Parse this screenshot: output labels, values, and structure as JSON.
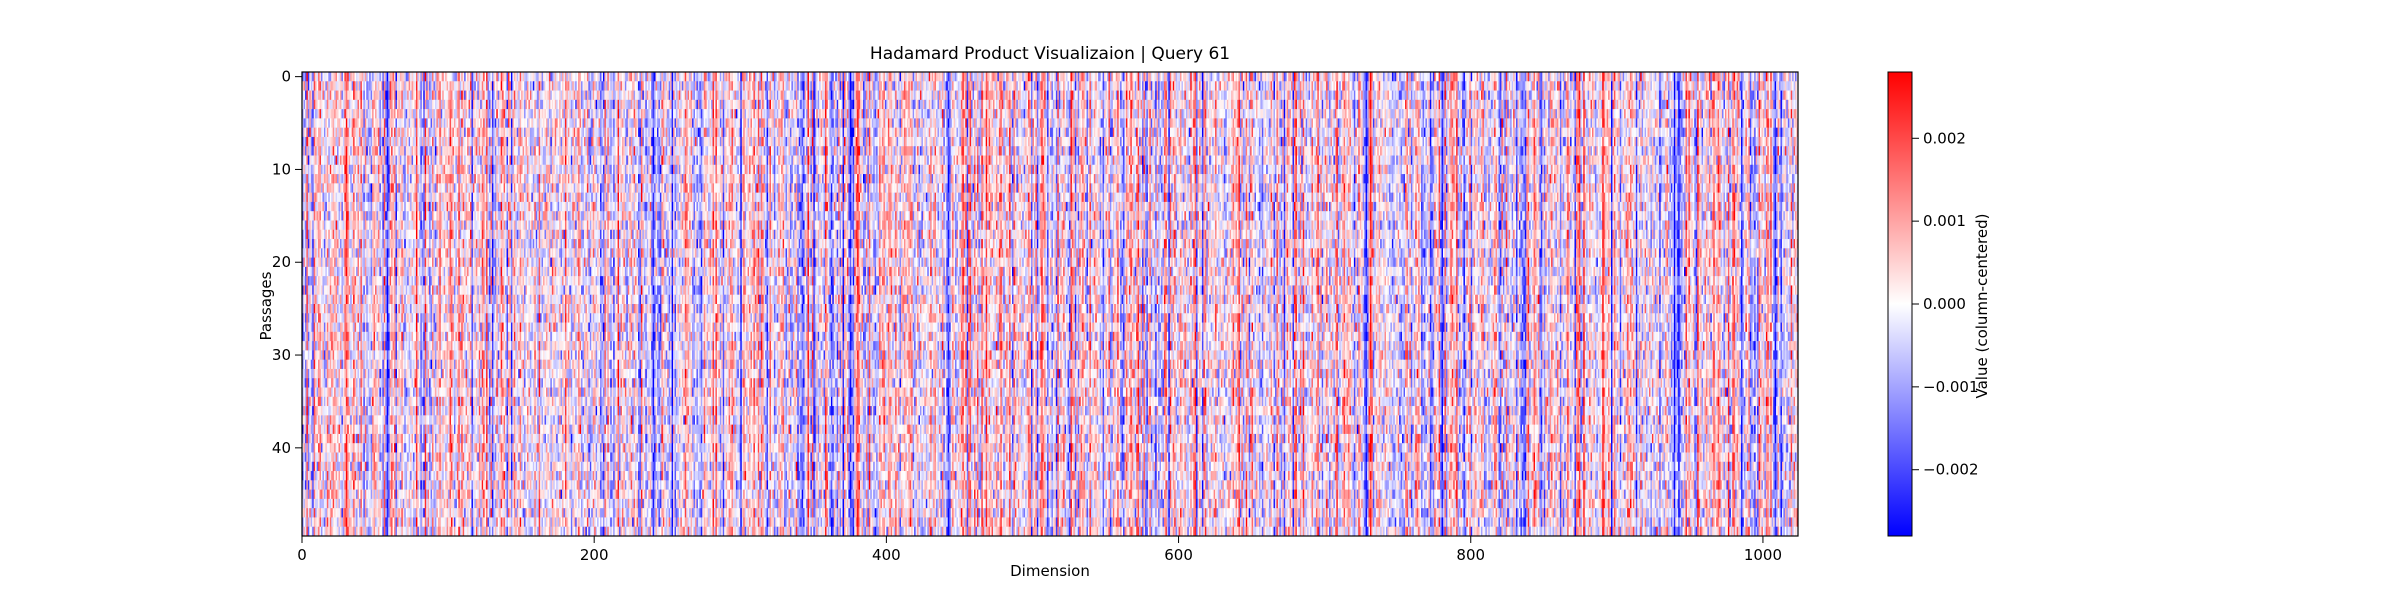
{
  "chart_data": {
    "type": "heatmap",
    "title": "Hadamard Product Visualizaion | Query 61",
    "xlabel": "Dimension",
    "ylabel": "Passages",
    "colorbar_label": "Value (column-centered)",
    "rows": 50,
    "columns": 1024,
    "xlim": [
      0,
      1024
    ],
    "ylim": [
      0,
      50
    ],
    "y_inverted": true,
    "xticks": [
      0,
      200,
      400,
      600,
      800,
      1000
    ],
    "yticks": [
      0,
      10,
      20,
      30,
      40
    ],
    "colormap": "bwr",
    "colormap_colors": [
      "#0000ff",
      "#ffffff",
      "#ff0000"
    ],
    "vmin": -0.0028,
    "vmax": 0.0028,
    "colorbar_ticks": [
      -0.002,
      -0.001,
      0.0,
      0.001,
      0.002
    ],
    "colorbar_tick_labels": [
      "−0.002",
      "−0.001",
      "0.000",
      "0.001",
      "0.002"
    ],
    "notes_visible_pattern": "vertical streaks: column-centered values vary mostly by dimension; strong columns near dimensions 30, 60, 240, 375, 380, 730, 780, 940, 1010",
    "strong_columns": [
      {
        "x": 30,
        "sign": "red"
      },
      {
        "x": 58,
        "sign": "blue"
      },
      {
        "x": 240,
        "sign": "blue"
      },
      {
        "x": 375,
        "sign": "blue"
      },
      {
        "x": 380,
        "sign": "red"
      },
      {
        "x": 442,
        "sign": "blue"
      },
      {
        "x": 728,
        "sign": "blue"
      },
      {
        "x": 731,
        "sign": "red"
      },
      {
        "x": 780,
        "sign": "blue"
      },
      {
        "x": 942,
        "sign": "blue"
      },
      {
        "x": 1008,
        "sign": "blue"
      }
    ]
  }
}
